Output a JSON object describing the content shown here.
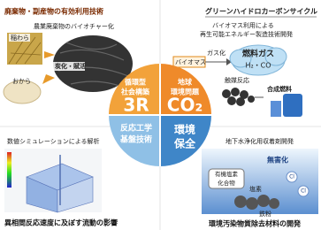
{
  "center": {
    "top_left": {
      "line1": "循環型",
      "line2": "社会構築",
      "big": "3R"
    },
    "top_right": {
      "line1": "地球",
      "line2": "環境問題",
      "big": "CO₂"
    },
    "bottom_left": {
      "line1": "反応工学",
      "line2": "基盤技術"
    },
    "bottom_right": {
      "line1": "環境",
      "line2": "保全"
    }
  },
  "top_left": {
    "title": "廃棄物・副産物の有効利用技術",
    "subtitle": "農業廃棄物のバイオチャー化",
    "straw": "稲わら",
    "okara": "おから",
    "process": "炭化・賦活"
  },
  "top_right": {
    "title": "グリーンハイドロカーボンサイクル",
    "subtitle1": "バイオマス利用による",
    "subtitle2": "再生可能エネルギー製造技術開発",
    "biomass": "バイオマス",
    "gasification": "ガス化",
    "fuel_gas": "燃料ガス",
    "fuel_gas_formula": "H₂・CO",
    "catalysis": "触媒反応",
    "synthetic_fuel": "合成燃料"
  },
  "bottom_left": {
    "subtitle": "数値シミュレーションによる解析",
    "title": "異相間反応速度に及ぼす流動の影響"
  },
  "bottom_right": {
    "subtitle": "地下水浄化用収着剤開発",
    "detox": "無害化",
    "organochlorine1": "有機塩素",
    "organochlorine2": "化合物",
    "chlorine": "塩素",
    "iron": "鉄粉",
    "cl": "Cl",
    "title": "環境汚染物質除去材料の開発"
  }
}
